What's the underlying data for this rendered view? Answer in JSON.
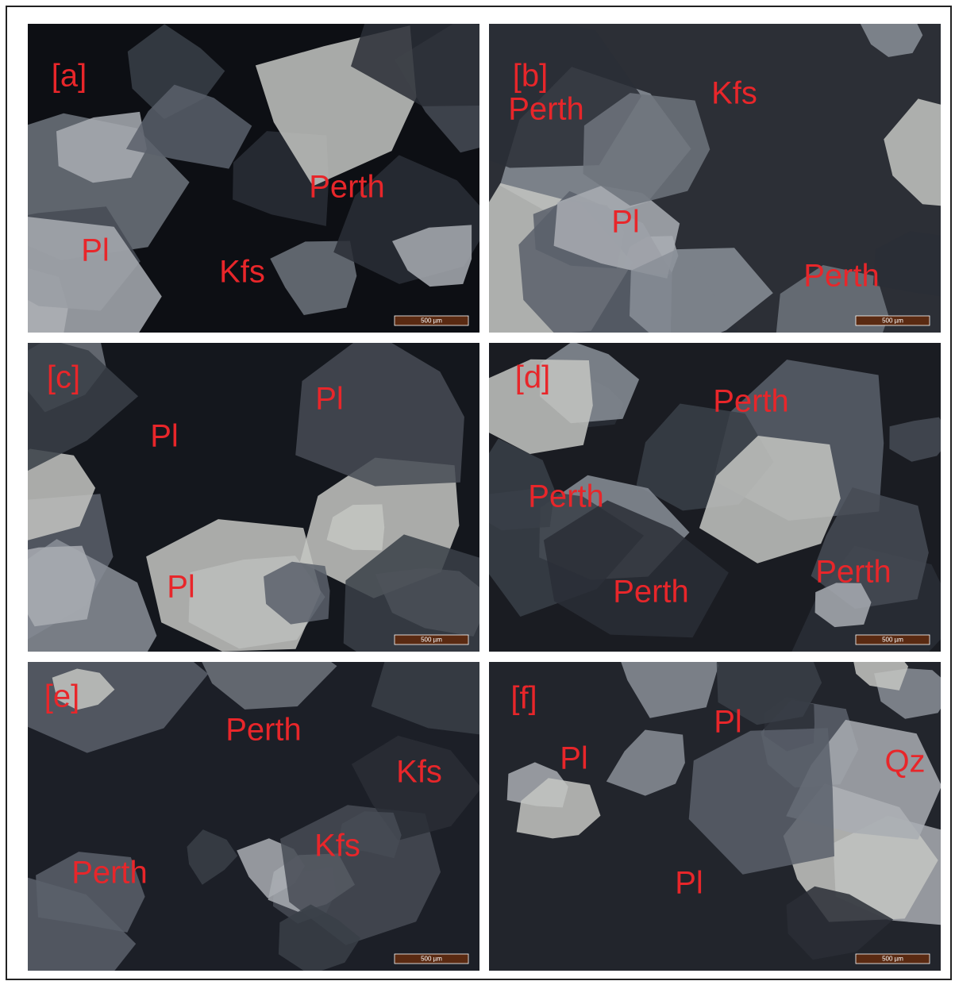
{
  "panels": [
    {
      "label": "[a]",
      "minerals": [
        "Pl",
        "Kfs",
        "Perth"
      ],
      "scale_bar": "500 µm"
    },
    {
      "label": "[b]",
      "minerals": [
        "Perth",
        "Kfs",
        "Pl",
        "Perth"
      ],
      "scale_bar": "500 µm"
    },
    {
      "label": "[c]",
      "minerals": [
        "Pl",
        "Pl",
        "Pl"
      ],
      "scale_bar": "500 µm"
    },
    {
      "label": "[d]",
      "minerals": [
        "Perth",
        "Perth",
        "Perth",
        "Perth"
      ],
      "scale_bar": "500 µm"
    },
    {
      "label": "[e]",
      "minerals": [
        "Perth",
        "Kfs",
        "Kfs",
        "Perth"
      ],
      "scale_bar": "500 µm"
    },
    {
      "label": "[f]",
      "minerals": [
        "Pl",
        "Pl",
        "Qz",
        "Pl"
      ],
      "scale_bar": "500 µm"
    }
  ]
}
